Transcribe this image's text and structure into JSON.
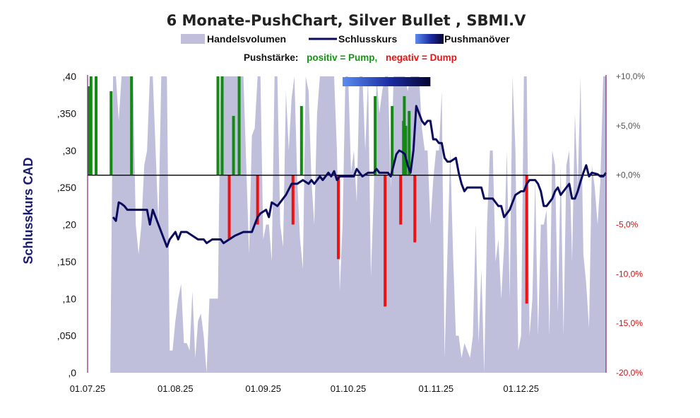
{
  "chart_data": {
    "type": "line",
    "title": "6 Monate-PushChart, Silver Bullet , SBMI.V",
    "legend": {
      "volume": "Handelsvolumen",
      "close": "Schlusskurs",
      "push": "Pushmanöver"
    },
    "subtitle": {
      "prefix": "Pushstärke:",
      "positive": "positiv = Pump,",
      "negative": "negativ = Dump"
    },
    "ylabel": "Schlusskurs CAD",
    "ylim": [
      0,
      0.4
    ],
    "y2lim": [
      -20,
      10
    ],
    "baseline_pct": 0,
    "x_tick_labels": [
      "01.07.25",
      "01.08.25",
      "01.09.25",
      "01.10.25",
      "01.11.25",
      "01.12.25"
    ],
    "y_tick_labels": [
      ",0",
      ",050",
      ",10",
      ",150",
      ",20",
      ",250",
      ",30",
      ",350",
      ",40"
    ],
    "y_ticks": [
      0,
      0.05,
      0.1,
      0.15,
      0.2,
      0.25,
      0.3,
      0.35,
      0.4
    ],
    "y2_tick_labels": [
      "-20,0%",
      "-15,0%",
      "-10,0%",
      "-5,0%",
      "+0,0%",
      "+5,0%",
      "+10,0%"
    ],
    "y2_ticks": [
      -20,
      -15,
      -10,
      -5,
      0,
      5,
      10
    ],
    "x_range_days": [
      0,
      183
    ],
    "x_ticks_days": [
      0,
      31,
      62,
      92,
      123,
      153
    ],
    "push_band_days": [
      90,
      121
    ],
    "close": [
      [
        9,
        0.21
      ],
      [
        10,
        0.205
      ],
      [
        11,
        0.23
      ],
      [
        12,
        0.228
      ],
      [
        13,
        0.225
      ],
      [
        14,
        0.22
      ],
      [
        16,
        0.22
      ],
      [
        18,
        0.22
      ],
      [
        20,
        0.22
      ],
      [
        21,
        0.22
      ],
      [
        22,
        0.2
      ],
      [
        23,
        0.22
      ],
      [
        24,
        0.21
      ],
      [
        26,
        0.19
      ],
      [
        27,
        0.18
      ],
      [
        28,
        0.17
      ],
      [
        29,
        0.18
      ],
      [
        30,
        0.185
      ],
      [
        31,
        0.19
      ],
      [
        32,
        0.18
      ],
      [
        33,
        0.19
      ],
      [
        35,
        0.19
      ],
      [
        37,
        0.185
      ],
      [
        39,
        0.18
      ],
      [
        41,
        0.18
      ],
      [
        42,
        0.175
      ],
      [
        44,
        0.18
      ],
      [
        45,
        0.18
      ],
      [
        47,
        0.18
      ],
      [
        48,
        0.175
      ],
      [
        50,
        0.18
      ],
      [
        52,
        0.185
      ],
      [
        55,
        0.19
      ],
      [
        58,
        0.19
      ],
      [
        59,
        0.2
      ],
      [
        60,
        0.21
      ],
      [
        61,
        0.215
      ],
      [
        63,
        0.22
      ],
      [
        64,
        0.21
      ],
      [
        65,
        0.23
      ],
      [
        67,
        0.225
      ],
      [
        70,
        0.24
      ],
      [
        72,
        0.255
      ],
      [
        74,
        0.255
      ],
      [
        76,
        0.26
      ],
      [
        78,
        0.255
      ],
      [
        79,
        0.26
      ],
      [
        80,
        0.255
      ],
      [
        81,
        0.26
      ],
      [
        82,
        0.265
      ],
      [
        83,
        0.26
      ],
      [
        84,
        0.265
      ],
      [
        85,
        0.27
      ],
      [
        86,
        0.265
      ],
      [
        87,
        0.272
      ],
      [
        88,
        0.26
      ],
      [
        89,
        0.265
      ],
      [
        92,
        0.265
      ],
      [
        94,
        0.265
      ],
      [
        95,
        0.275
      ],
      [
        96,
        0.27
      ],
      [
        97,
        0.265
      ],
      [
        99,
        0.27
      ],
      [
        101,
        0.27
      ],
      [
        102,
        0.275
      ],
      [
        103,
        0.27
      ],
      [
        104,
        0.27
      ],
      [
        105,
        0.27
      ],
      [
        106,
        0.27
      ],
      [
        107,
        0.265
      ],
      [
        108,
        0.28
      ],
      [
        109,
        0.295
      ],
      [
        110,
        0.3
      ],
      [
        111,
        0.298
      ],
      [
        112,
        0.295
      ],
      [
        113,
        0.28
      ],
      [
        114,
        0.27
      ],
      [
        115,
        0.3
      ],
      [
        116,
        0.36
      ],
      [
        117,
        0.35
      ],
      [
        118,
        0.34
      ],
      [
        119,
        0.335
      ],
      [
        120,
        0.34
      ],
      [
        121,
        0.34
      ],
      [
        122,
        0.315
      ],
      [
        123,
        0.315
      ],
      [
        124,
        0.31
      ],
      [
        125,
        0.31
      ],
      [
        126,
        0.29
      ],
      [
        127,
        0.285
      ],
      [
        128,
        0.285
      ],
      [
        130,
        0.29
      ],
      [
        131,
        0.27
      ],
      [
        132,
        0.255
      ],
      [
        133,
        0.245
      ],
      [
        134,
        0.25
      ],
      [
        135,
        0.25
      ],
      [
        137,
        0.25
      ],
      [
        138,
        0.25
      ],
      [
        139,
        0.25
      ],
      [
        140,
        0.235
      ],
      [
        141,
        0.235
      ],
      [
        143,
        0.235
      ],
      [
        144,
        0.23
      ],
      [
        145,
        0.225
      ],
      [
        146,
        0.225
      ],
      [
        147,
        0.21
      ],
      [
        148,
        0.215
      ],
      [
        149,
        0.22
      ],
      [
        150,
        0.23
      ],
      [
        151,
        0.24
      ],
      [
        153,
        0.245
      ],
      [
        154,
        0.245
      ],
      [
        155,
        0.255
      ],
      [
        156,
        0.26
      ],
      [
        158,
        0.26
      ],
      [
        159,
        0.255
      ],
      [
        160,
        0.245
      ],
      [
        161,
        0.225
      ],
      [
        162,
        0.225
      ],
      [
        163,
        0.23
      ],
      [
        164,
        0.235
      ],
      [
        165,
        0.245
      ],
      [
        166,
        0.25
      ],
      [
        167,
        0.24
      ],
      [
        169,
        0.25
      ],
      [
        170,
        0.255
      ],
      [
        171,
        0.235
      ],
      [
        172,
        0.235
      ],
      [
        173,
        0.245
      ],
      [
        174,
        0.258
      ],
      [
        175,
        0.27
      ],
      [
        176,
        0.28
      ],
      [
        177,
        0.265
      ],
      [
        178,
        0.27
      ],
      [
        180,
        0.268
      ],
      [
        181,
        0.265
      ],
      [
        182,
        0.265
      ],
      [
        183,
        0.27
      ]
    ],
    "volume": [
      [
        8,
        0
      ],
      [
        9,
        0.4
      ],
      [
        10,
        0.4
      ],
      [
        11,
        0.34
      ],
      [
        12,
        0.4
      ],
      [
        13,
        0.4
      ],
      [
        14,
        0.4
      ],
      [
        16,
        0.4
      ],
      [
        17,
        0.2
      ],
      [
        18,
        0.16
      ],
      [
        19,
        0.2
      ],
      [
        20,
        0.28
      ],
      [
        21,
        0.3
      ],
      [
        22,
        0.4
      ],
      [
        23,
        0.4
      ],
      [
        24,
        0.3
      ],
      [
        25,
        0.2
      ],
      [
        26,
        0.4
      ],
      [
        27,
        0.4
      ],
      [
        28,
        0.4
      ],
      [
        29,
        0.03
      ],
      [
        30,
        0.03
      ],
      [
        31,
        0.07
      ],
      [
        32,
        0.1
      ],
      [
        33,
        0.12
      ],
      [
        34,
        0.04
      ],
      [
        35,
        0.04
      ],
      [
        36,
        0.03
      ],
      [
        37,
        0.11
      ],
      [
        38,
        0.02
      ],
      [
        39,
        0.07
      ],
      [
        40,
        0.08
      ],
      [
        41,
        0.05
      ],
      [
        42,
        0.0
      ],
      [
        43,
        0.1
      ],
      [
        44,
        0.1
      ],
      [
        45,
        0.1
      ],
      [
        46,
        0.1
      ],
      [
        47,
        0.4
      ],
      [
        48,
        0.4
      ],
      [
        49,
        0.4
      ],
      [
        50,
        0.4
      ],
      [
        51,
        0.4
      ],
      [
        52,
        0.4
      ],
      [
        53,
        0.4
      ],
      [
        54,
        0.4
      ],
      [
        55,
        0.4
      ],
      [
        56,
        0.28
      ],
      [
        57,
        0.16
      ],
      [
        58,
        0.32
      ],
      [
        59,
        0.33
      ],
      [
        60,
        0.4
      ],
      [
        61,
        0.4
      ],
      [
        62,
        0.18
      ],
      [
        63,
        0.2
      ],
      [
        64,
        0.2
      ],
      [
        65,
        0.15
      ],
      [
        66,
        0.4
      ],
      [
        67,
        0.4
      ],
      [
        68,
        0.2
      ],
      [
        69,
        0.17
      ],
      [
        70,
        0.38
      ],
      [
        71,
        0.3
      ],
      [
        72,
        0.37
      ],
      [
        73,
        0.4
      ],
      [
        74,
        0.26
      ],
      [
        75,
        0.18
      ],
      [
        76,
        0.14
      ],
      [
        77,
        0.4
      ],
      [
        78,
        0.38
      ],
      [
        79,
        0.26
      ],
      [
        80,
        0.2
      ],
      [
        81,
        0.35
      ],
      [
        82,
        0.4
      ],
      [
        83,
        0.4
      ],
      [
        84,
        0.4
      ],
      [
        85,
        0.4
      ],
      [
        86,
        0.4
      ],
      [
        87,
        0.4
      ],
      [
        88,
        0.3
      ],
      [
        89,
        0.11
      ],
      [
        90,
        0.2
      ],
      [
        91,
        0.4
      ],
      [
        92,
        0.4
      ],
      [
        93,
        0.27
      ],
      [
        94,
        0.3
      ],
      [
        95,
        0.23
      ],
      [
        96,
        0.4
      ],
      [
        97,
        0.4
      ],
      [
        98,
        0.3
      ],
      [
        99,
        0.4
      ],
      [
        100,
        0.13
      ],
      [
        101,
        0.24
      ],
      [
        102,
        0.4
      ],
      [
        103,
        0.35
      ],
      [
        104,
        0.38
      ],
      [
        105,
        0.4
      ],
      [
        106,
        0.4
      ],
      [
        107,
        0.25
      ],
      [
        108,
        0.4
      ],
      [
        109,
        0.4
      ],
      [
        110,
        0.4
      ],
      [
        111,
        0.4
      ],
      [
        112,
        0.4
      ],
      [
        113,
        0.38
      ],
      [
        114,
        0.4
      ],
      [
        115,
        0.4
      ],
      [
        116,
        0.4
      ],
      [
        117,
        0.4
      ],
      [
        118,
        0.33
      ],
      [
        119,
        0.3
      ],
      [
        120,
        0.3
      ],
      [
        121,
        0.2
      ],
      [
        122,
        0.26
      ],
      [
        123,
        0.3
      ],
      [
        124,
        0.3
      ],
      [
        125,
        0.38
      ],
      [
        126,
        0.02
      ],
      [
        127,
        0.16
      ],
      [
        128,
        0.3
      ],
      [
        129,
        0.16
      ],
      [
        130,
        0.05
      ],
      [
        131,
        0.05
      ],
      [
        132,
        0.02
      ],
      [
        133,
        0.04
      ],
      [
        134,
        0.03
      ],
      [
        135,
        0.02
      ],
      [
        136,
        0.05
      ],
      [
        137,
        0.2
      ],
      [
        138,
        0.04
      ],
      [
        139,
        0.14
      ],
      [
        140,
        0.0
      ],
      [
        141,
        0.2
      ],
      [
        142,
        0.3
      ],
      [
        143,
        0.3
      ],
      [
        144,
        0.15
      ],
      [
        145,
        0.18
      ],
      [
        146,
        0.1
      ],
      [
        147,
        0.17
      ],
      [
        148,
        0.3
      ],
      [
        149,
        0.1
      ],
      [
        150,
        0.4
      ],
      [
        151,
        0.3
      ],
      [
        152,
        0.03
      ],
      [
        153,
        0.05
      ],
      [
        154,
        0.4
      ],
      [
        155,
        0.4
      ],
      [
        156,
        0.05
      ],
      [
        157,
        0.1
      ],
      [
        158,
        0.26
      ],
      [
        159,
        0.05
      ],
      [
        160,
        0.2
      ],
      [
        161,
        0.2
      ],
      [
        162,
        0.22
      ],
      [
        163,
        0.05
      ],
      [
        164,
        0.3
      ],
      [
        165,
        0.28
      ],
      [
        166,
        0.08
      ],
      [
        167,
        0.28
      ],
      [
        168,
        0.05
      ],
      [
        169,
        0.28
      ],
      [
        170,
        0.3
      ],
      [
        171,
        0.15
      ],
      [
        172,
        0.35
      ],
      [
        173,
        0.25
      ],
      [
        174,
        0.4
      ],
      [
        175,
        0.16
      ],
      [
        176,
        0.12
      ],
      [
        177,
        0.06
      ],
      [
        178,
        0.28
      ],
      [
        179,
        0.25
      ],
      [
        180,
        0.2
      ],
      [
        181,
        0.26
      ],
      [
        182,
        0.4
      ],
      [
        183,
        0.4
      ],
      [
        183,
        0
      ]
    ],
    "push_bars_pct": [
      [
        0.5,
        9.0
      ],
      [
        1.2,
        10.0
      ],
      [
        3.0,
        10.0
      ],
      [
        8.3,
        8.5
      ],
      [
        15.5,
        10.0
      ],
      [
        46.0,
        10.0
      ],
      [
        47.5,
        10.0
      ],
      [
        51.5,
        6.0
      ],
      [
        53.5,
        10.0
      ],
      [
        75.5,
        7.0
      ],
      [
        101.5,
        8.0
      ],
      [
        111.5,
        5.5
      ],
      [
        111.8,
        8.0
      ],
      [
        112.3,
        5.0
      ],
      [
        113.5,
        6.5
      ],
      [
        107.5,
        7.0
      ],
      [
        50.0,
        -6.5
      ],
      [
        60.0,
        -5.0
      ],
      [
        72.5,
        -5.0
      ],
      [
        88.5,
        -8.5
      ],
      [
        105.0,
        -13.3
      ],
      [
        110.5,
        -5.0
      ],
      [
        115.5,
        -6.8
      ],
      [
        155.0,
        -13.0
      ]
    ]
  }
}
